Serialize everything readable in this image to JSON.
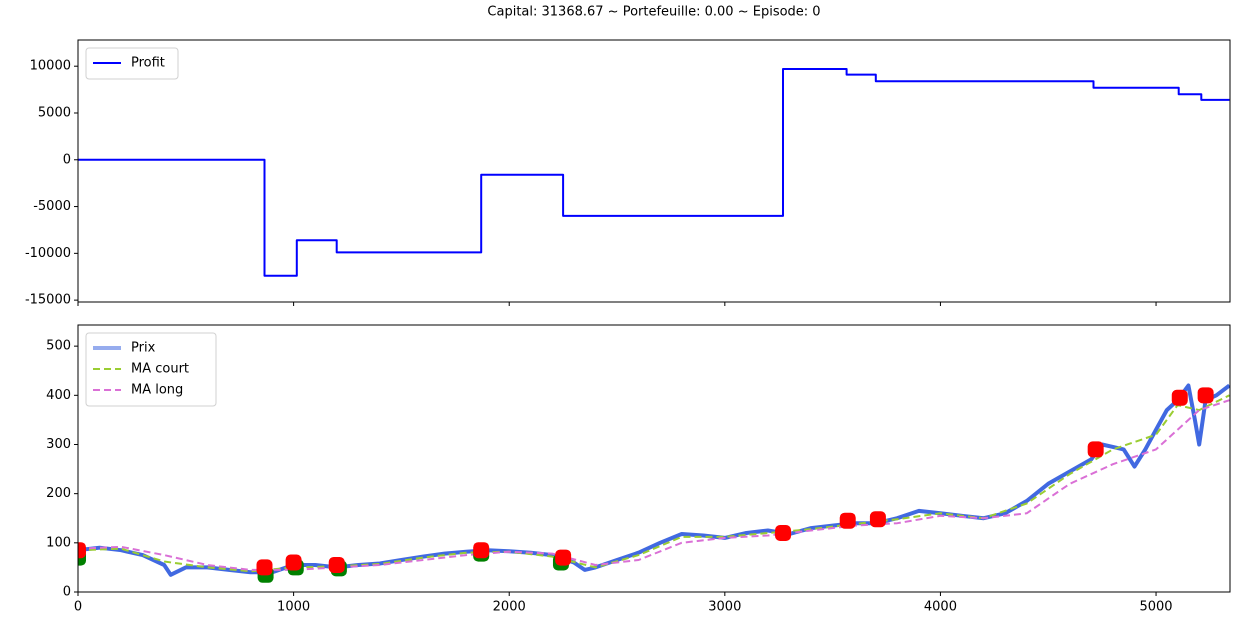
{
  "title": "Capital: 31368.67 ~ Portefeuille: 0.00 ~ Episode: 0",
  "chart_data": [
    {
      "type": "line",
      "legend": "upper left",
      "show_xtick_labels": false,
      "xlim": [
        0,
        5343
      ],
      "xticks": [
        0,
        1000,
        2000,
        3000,
        4000,
        5000
      ],
      "ylim": [
        -15200,
        12800
      ],
      "yticks": [
        -15000,
        -10000,
        -5000,
        0,
        5000,
        10000
      ],
      "series": [
        {
          "name": "Profit",
          "color": "#0000ff",
          "width": 2,
          "dash": false,
          "x": [
            0,
            865,
            865,
            1015,
            1015,
            1200,
            1200,
            1870,
            1870,
            2250,
            2250,
            3270,
            3270,
            3565,
            3565,
            3700,
            3700,
            4710,
            4710,
            5105,
            5105,
            5210,
            5210,
            5340
          ],
          "values": [
            0,
            0,
            -12400,
            -12400,
            -8600,
            -8600,
            -9900,
            -9900,
            -1600,
            -1600,
            -6000,
            -6000,
            9700,
            9700,
            9100,
            9100,
            8400,
            8400,
            7700,
            7700,
            7000,
            7000,
            6400,
            6400
          ]
        }
      ]
    },
    {
      "type": "line",
      "legend": "upper left",
      "show_xtick_labels": true,
      "xlim": [
        0,
        5343
      ],
      "xticks": [
        0,
        1000,
        2000,
        3000,
        4000,
        5000
      ],
      "ylim": [
        0,
        543
      ],
      "yticks": [
        0,
        100,
        200,
        300,
        400,
        500
      ],
      "buy_markers": {
        "color": "#008000",
        "x": [
          0,
          870,
          1010,
          1210,
          1870,
          2240
        ],
        "values": [
          70,
          35,
          50,
          48,
          78,
          60
        ]
      },
      "sell_markers": {
        "color": "#ff0000",
        "x": [
          0,
          865,
          1000,
          1200,
          1870,
          2250,
          3270,
          3570,
          3710,
          4720,
          5110,
          5230
        ],
        "values": [
          85,
          50,
          60,
          55,
          85,
          70,
          120,
          145,
          148,
          290,
          395,
          400
        ]
      },
      "series": [
        {
          "name": "Prix",
          "color": "#4169e1",
          "width": 4,
          "dash": false,
          "x": [
            0,
            100,
            200,
            300,
            400,
            430,
            500,
            600,
            700,
            800,
            900,
            1000,
            1100,
            1200,
            1300,
            1400,
            1500,
            1600,
            1700,
            1800,
            1900,
            2000,
            2100,
            2200,
            2300,
            2350,
            2400,
            2500,
            2600,
            2700,
            2800,
            2900,
            3000,
            3100,
            3200,
            3300,
            3400,
            3500,
            3600,
            3700,
            3800,
            3900,
            4000,
            4100,
            4200,
            4300,
            4400,
            4500,
            4600,
            4700,
            4750,
            4800,
            4850,
            4900,
            4950,
            5000,
            5050,
            5100,
            5150,
            5180,
            5200,
            5230,
            5280,
            5340
          ],
          "values": [
            85,
            90,
            85,
            75,
            55,
            35,
            50,
            50,
            45,
            40,
            40,
            55,
            55,
            50,
            55,
            58,
            65,
            72,
            78,
            82,
            85,
            83,
            80,
            75,
            60,
            45,
            50,
            65,
            80,
            100,
            118,
            115,
            110,
            120,
            125,
            118,
            130,
            135,
            140,
            140,
            150,
            165,
            160,
            155,
            150,
            160,
            185,
            220,
            245,
            270,
            300,
            295,
            290,
            255,
            290,
            330,
            370,
            390,
            420,
            350,
            300,
            390,
            400,
            420
          ]
        },
        {
          "name": "MA court",
          "color": "#9acd32",
          "width": 2,
          "dash": true,
          "x": [
            0,
            200,
            400,
            600,
            800,
            1000,
            1200,
            1400,
            1600,
            1800,
            2000,
            2200,
            2400,
            2600,
            2800,
            3000,
            3200,
            3400,
            3600,
            3800,
            4000,
            4200,
            4400,
            4600,
            4800,
            5000,
            5100,
            5200,
            5340
          ],
          "values": [
            85,
            88,
            62,
            50,
            42,
            50,
            52,
            57,
            70,
            80,
            82,
            72,
            50,
            75,
            112,
            112,
            120,
            128,
            138,
            148,
            160,
            150,
            180,
            240,
            290,
            320,
            380,
            370,
            400
          ]
        },
        {
          "name": "MA long",
          "color": "#da70d6",
          "width": 2,
          "dash": true,
          "x": [
            0,
            200,
            400,
            600,
            800,
            1000,
            1200,
            1400,
            1600,
            1800,
            2000,
            2200,
            2400,
            2600,
            2800,
            3000,
            3200,
            3400,
            3600,
            3800,
            4000,
            4200,
            4400,
            4600,
            4800,
            5000,
            5100,
            5200,
            5340
          ],
          "values": [
            88,
            92,
            75,
            55,
            45,
            45,
            50,
            55,
            65,
            75,
            82,
            78,
            55,
            65,
            100,
            110,
            115,
            125,
            135,
            140,
            155,
            150,
            160,
            220,
            260,
            290,
            330,
            370,
            390
          ]
        }
      ]
    }
  ]
}
